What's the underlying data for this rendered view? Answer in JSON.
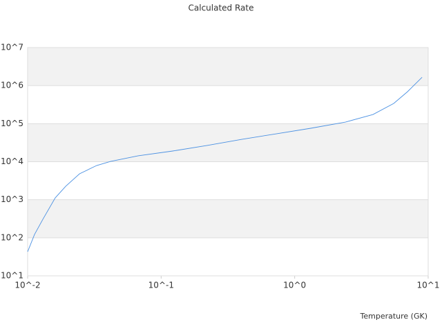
{
  "chart_data": {
    "type": "line",
    "title": "Calculated Rate",
    "x_label": "Temperature (GK)",
    "x": [
      0.01,
      0.01126,
      0.013,
      0.0161,
      0.0193,
      0.0245,
      0.0329,
      0.0418,
      0.0673,
      0.122,
      0.221,
      0.402,
      0.728,
      1.32,
      2.4,
      3.86,
      5.52,
      7.0,
      9.0
    ],
    "series": [
      {
        "color": "#4a90e2",
        "values": [
          43,
          122,
          306,
          1120,
          2270,
          4820,
          7940,
          10200,
          14300,
          19100,
          26700,
          38800,
          54200,
          75700,
          110000,
          174000,
          340000,
          692000,
          1660000
        ]
      }
    ],
    "xlim": [
      0.01,
      10
    ],
    "ylim": [
      10,
      10000000
    ],
    "xlog": true,
    "ylog": true,
    "grid": true,
    "xticks": [
      {
        "value": 0.01,
        "label": "10^-2"
      },
      {
        "value": 0.1,
        "label": "10^-1"
      },
      {
        "value": 1,
        "label": "10^0"
      },
      {
        "value": 10,
        "label": "10^1"
      }
    ],
    "yticks": [
      {
        "value": 10,
        "label": "10^1"
      },
      {
        "value": 100,
        "label": "10^2"
      },
      {
        "value": 1000,
        "label": "10^3"
      },
      {
        "value": 10000,
        "label": "10^4"
      },
      {
        "value": 100000,
        "label": "10^5"
      },
      {
        "value": 1000000,
        "label": "10^6"
      },
      {
        "value": 10000000,
        "label": "10^7"
      }
    ]
  }
}
